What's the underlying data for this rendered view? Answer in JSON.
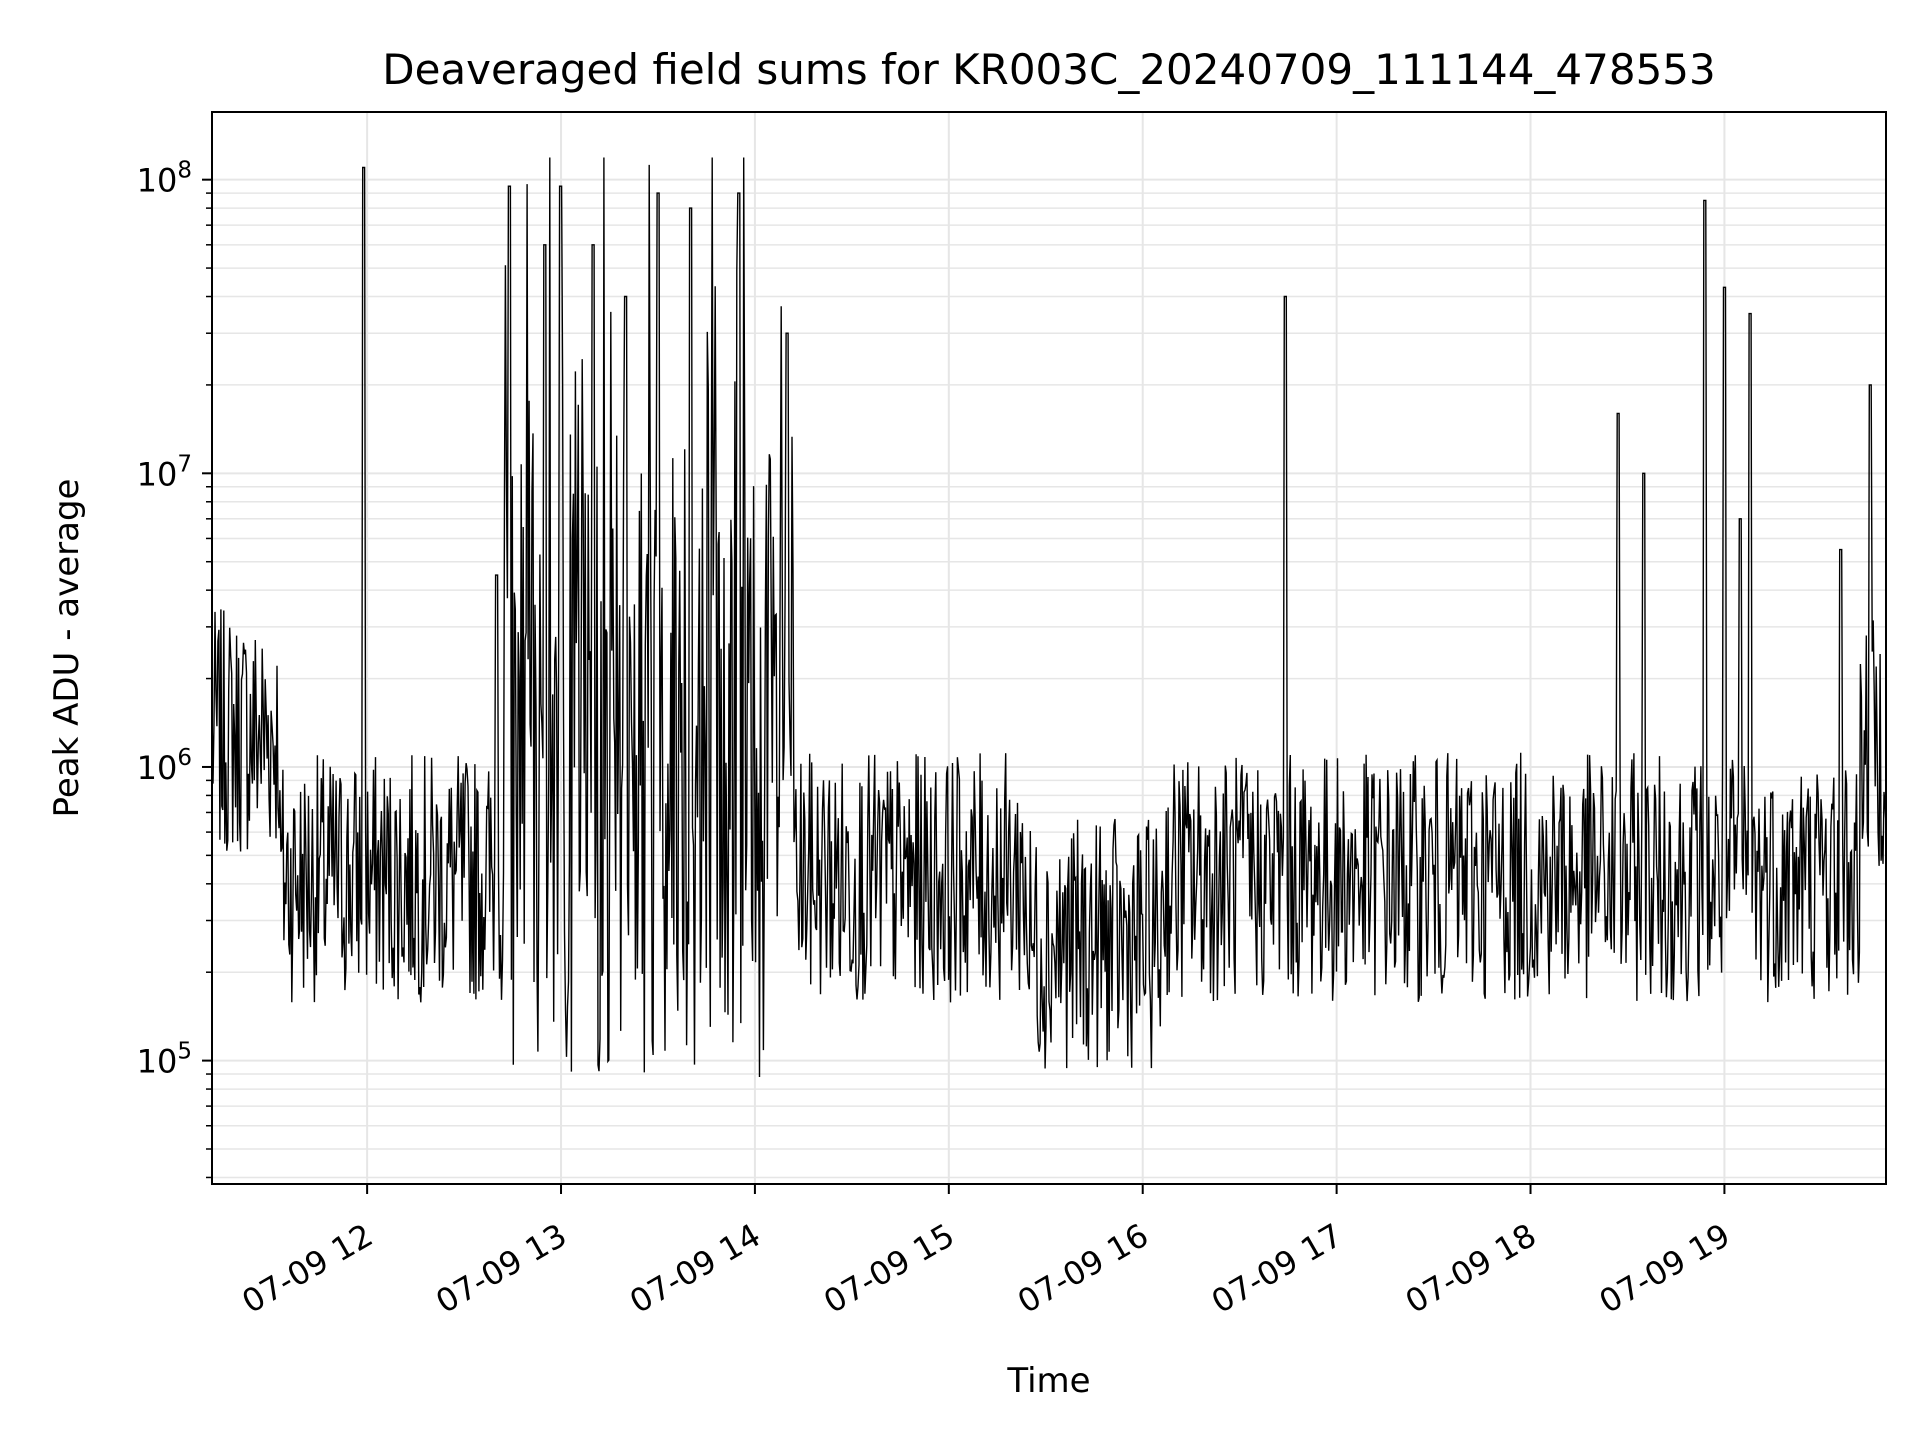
{
  "chart_data": {
    "type": "line",
    "title": "Deaveraged field sums for KR003C_20240709_111144_478553",
    "xlabel": "Time",
    "ylabel": "Peak ADU - average",
    "y_scale": "log",
    "ylim": [
      38000,
      170000000
    ],
    "xlim": [
      "2024-07-09 11:12",
      "2024-07-09 19:50"
    ],
    "grid": true,
    "line_color": "#000000",
    "grid_color": "#e6e6e6",
    "x_ticks": [
      {
        "t": "2024-07-09 12:00",
        "label": "07-09 12"
      },
      {
        "t": "2024-07-09 13:00",
        "label": "07-09 13"
      },
      {
        "t": "2024-07-09 14:00",
        "label": "07-09 14"
      },
      {
        "t": "2024-07-09 15:00",
        "label": "07-09 15"
      },
      {
        "t": "2024-07-09 16:00",
        "label": "07-09 16"
      },
      {
        "t": "2024-07-09 17:00",
        "label": "07-09 17"
      },
      {
        "t": "2024-07-09 18:00",
        "label": "07-09 18"
      },
      {
        "t": "2024-07-09 19:00",
        "label": "07-09 19"
      }
    ],
    "y_ticks": [
      {
        "value": 100000,
        "base": "10",
        "exp": "5"
      },
      {
        "value": 1000000,
        "base": "10",
        "exp": "6"
      },
      {
        "value": 10000000,
        "base": "10",
        "exp": "7"
      },
      {
        "value": 100000000,
        "base": "10",
        "exp": "8"
      }
    ],
    "series": [
      {
        "values_approx": [
          [
            "2024-07-09 11:12",
            1200000
          ],
          [
            "2024-07-09 11:15",
            900000
          ],
          [
            "2024-07-09 11:20",
            1800000
          ],
          [
            "2024-07-09 11:25",
            1500000
          ],
          [
            "2024-07-09 11:30",
            1700000
          ],
          [
            "2024-07-09 11:33",
            700000
          ],
          [
            "2024-07-09 11:38",
            300000
          ],
          [
            "2024-07-09 11:45",
            150000
          ],
          [
            "2024-07-09 11:50",
            400000
          ],
          [
            "2024-07-09 11:55",
            600000
          ],
          [
            "2024-07-09 11:59",
            110000000
          ],
          [
            "2024-07-09 12:05",
            400000
          ],
          [
            "2024-07-09 12:15",
            500000
          ],
          [
            "2024-07-09 12:25",
            350000
          ],
          [
            "2024-07-09 12:35",
            300000
          ],
          [
            "2024-07-09 12:40",
            4500000
          ],
          [
            "2024-07-09 12:44",
            95000000
          ],
          [
            "2024-07-09 12:50",
            1500000
          ],
          [
            "2024-07-09 12:55",
            60000000
          ],
          [
            "2024-07-09 13:00",
            95000000
          ],
          [
            "2024-07-09 13:05",
            800000
          ],
          [
            "2024-07-09 13:10",
            60000000
          ],
          [
            "2024-07-09 13:15",
            500000
          ],
          [
            "2024-07-09 13:20",
            40000000
          ],
          [
            "2024-07-09 13:30",
            90000000
          ],
          [
            "2024-07-09 13:40",
            80000000
          ],
          [
            "2024-07-09 13:50",
            700000
          ],
          [
            "2024-07-09 13:55",
            90000000
          ],
          [
            "2024-07-09 14:00",
            600000
          ],
          [
            "2024-07-09 14:10",
            30000000
          ],
          [
            "2024-07-09 14:20",
            400000
          ],
          [
            "2024-07-09 14:30",
            300000
          ],
          [
            "2024-07-09 14:45",
            500000
          ],
          [
            "2024-07-09 15:00",
            600000
          ],
          [
            "2024-07-09 15:15",
            400000
          ],
          [
            "2024-07-09 15:30",
            300000
          ],
          [
            "2024-07-09 15:45",
            200000
          ],
          [
            "2024-07-09 16:00",
            250000
          ],
          [
            "2024-07-09 16:15",
            350000
          ],
          [
            "2024-07-09 16:30",
            300000
          ],
          [
            "2024-07-09 16:44",
            40000000
          ],
          [
            "2024-07-09 16:50",
            500000
          ],
          [
            "2024-07-09 17:00",
            450000
          ],
          [
            "2024-07-09 17:15",
            500000
          ],
          [
            "2024-07-09 17:30",
            400000
          ],
          [
            "2024-07-09 17:45",
            350000
          ],
          [
            "2024-07-09 18:00",
            300000
          ],
          [
            "2024-07-09 18:15",
            350000
          ],
          [
            "2024-07-09 18:27",
            16000000
          ],
          [
            "2024-07-09 18:35",
            10000000
          ],
          [
            "2024-07-09 18:45",
            500000
          ],
          [
            "2024-07-09 18:54",
            85000000
          ],
          [
            "2024-07-09 19:00",
            43000000
          ],
          [
            "2024-07-09 19:05",
            7000000
          ],
          [
            "2024-07-09 19:08",
            35000000
          ],
          [
            "2024-07-09 19:20",
            500000
          ],
          [
            "2024-07-09 19:36",
            5500000
          ],
          [
            "2024-07-09 19:45",
            20000000
          ],
          [
            "2024-07-09 19:50",
            1500000
          ]
        ]
      }
    ]
  }
}
